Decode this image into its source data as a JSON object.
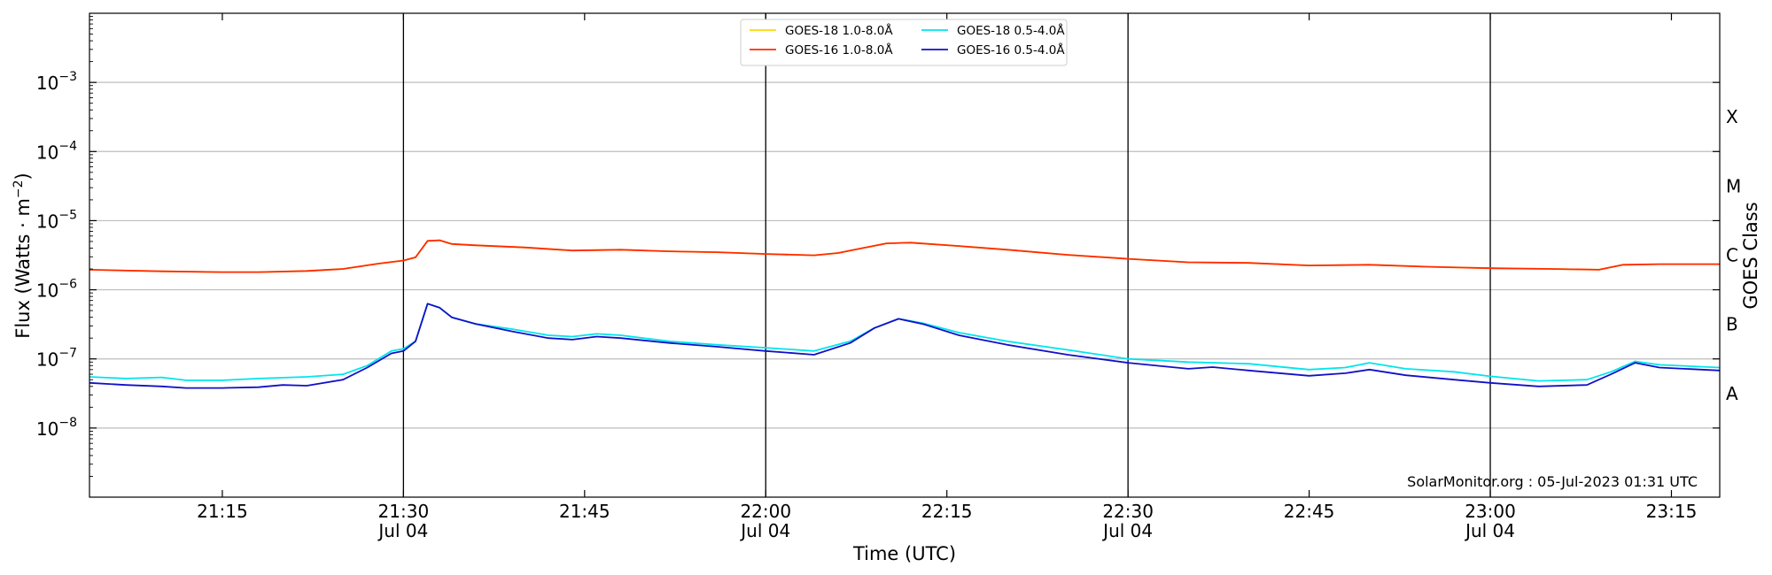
{
  "chart_data": {
    "type": "line",
    "xlabel": "Time (UTC)",
    "ylabel": "Flux (Watts · m",
    "ylabel_sup": "−2",
    "ylabel_close": ")",
    "right_label": "GOES Class",
    "annotation": "SolarMonitor.org : 05-Jul-2023 01:31 UTC",
    "y_scale": "log",
    "ylim": [
      1e-09,
      0.01
    ],
    "xlim": [
      "21:04",
      "23:19"
    ],
    "grid": "horizontal",
    "legend_position": "top-center",
    "x_ticks": [
      {
        "t": "21:15",
        "date": ""
      },
      {
        "t": "21:30",
        "date": "Jul 04"
      },
      {
        "t": "21:45",
        "date": ""
      },
      {
        "t": "22:00",
        "date": "Jul 04"
      },
      {
        "t": "22:15",
        "date": ""
      },
      {
        "t": "22:30",
        "date": "Jul 04"
      },
      {
        "t": "22:45",
        "date": ""
      },
      {
        "t": "23:00",
        "date": "Jul 04"
      },
      {
        "t": "23:15",
        "date": ""
      }
    ],
    "vertical_lines": [
      "21:30",
      "22:00",
      "22:30",
      "23:00"
    ],
    "y_ticks": [
      {
        "value": 1e-08,
        "mant": "10",
        "exp": "−8"
      },
      {
        "value": 1e-07,
        "mant": "10",
        "exp": "−7"
      },
      {
        "value": 1e-06,
        "mant": "10",
        "exp": "−6"
      },
      {
        "value": 1e-05,
        "mant": "10",
        "exp": "−5"
      },
      {
        "value": 0.0001,
        "mant": "10",
        "exp": "−4"
      },
      {
        "value": 0.001,
        "mant": "10",
        "exp": "−3"
      }
    ],
    "goes_classes": [
      {
        "label": "A",
        "value": 3.16e-08
      },
      {
        "label": "B",
        "value": 3.16e-07
      },
      {
        "label": "C",
        "value": 3.16e-06
      },
      {
        "label": "M",
        "value": 3.16e-05
      },
      {
        "label": "X",
        "value": 0.000316
      }
    ],
    "series": [
      {
        "name": "GOES-18 1.0-8.0Å",
        "color": "#ffd700",
        "points": [
          [
            "21:04",
            1.95e-06
          ],
          [
            "21:10",
            1.85e-06
          ],
          [
            "21:15",
            1.8e-06
          ],
          [
            "21:18",
            1.8e-06
          ],
          [
            "21:22",
            1.87e-06
          ],
          [
            "21:25",
            2e-06
          ],
          [
            "21:28",
            2.4e-06
          ],
          [
            "21:30",
            2.65e-06
          ],
          [
            "21:31",
            2.95e-06
          ],
          [
            "21:32",
            5.1e-06
          ],
          [
            "21:33",
            5.2e-06
          ],
          [
            "21:34",
            4.6e-06
          ],
          [
            "21:36",
            4.4e-06
          ],
          [
            "21:40",
            4.1e-06
          ],
          [
            "21:44",
            3.7e-06
          ],
          [
            "21:48",
            3.8e-06
          ],
          [
            "21:52",
            3.6e-06
          ],
          [
            "21:56",
            3.5e-06
          ],
          [
            "22:00",
            3.3e-06
          ],
          [
            "22:04",
            3.15e-06
          ],
          [
            "22:06",
            3.4e-06
          ],
          [
            "22:08",
            4e-06
          ],
          [
            "22:10",
            4.7e-06
          ],
          [
            "22:12",
            4.8e-06
          ],
          [
            "22:16",
            4.3e-06
          ],
          [
            "22:20",
            3.8e-06
          ],
          [
            "22:25",
            3.2e-06
          ],
          [
            "22:30",
            2.8e-06
          ],
          [
            "22:35",
            2.5e-06
          ],
          [
            "22:40",
            2.45e-06
          ],
          [
            "22:45",
            2.25e-06
          ],
          [
            "22:50",
            2.3e-06
          ],
          [
            "22:55",
            2.15e-06
          ],
          [
            "23:00",
            2.05e-06
          ],
          [
            "23:05",
            2e-06
          ],
          [
            "23:09",
            1.95e-06
          ],
          [
            "23:11",
            2.3e-06
          ],
          [
            "23:14",
            2.35e-06
          ],
          [
            "23:19",
            2.35e-06
          ]
        ]
      },
      {
        "name": "GOES-16 1.0-8.0Å",
        "color": "#ff2a00",
        "points": [
          [
            "21:04",
            1.95e-06
          ],
          [
            "21:10",
            1.85e-06
          ],
          [
            "21:15",
            1.8e-06
          ],
          [
            "21:18",
            1.8e-06
          ],
          [
            "21:22",
            1.87e-06
          ],
          [
            "21:25",
            2e-06
          ],
          [
            "21:28",
            2.4e-06
          ],
          [
            "21:30",
            2.65e-06
          ],
          [
            "21:31",
            2.95e-06
          ],
          [
            "21:32",
            5.1e-06
          ],
          [
            "21:33",
            5.2e-06
          ],
          [
            "21:34",
            4.6e-06
          ],
          [
            "21:36",
            4.4e-06
          ],
          [
            "21:40",
            4.1e-06
          ],
          [
            "21:44",
            3.7e-06
          ],
          [
            "21:48",
            3.8e-06
          ],
          [
            "21:52",
            3.6e-06
          ],
          [
            "21:56",
            3.5e-06
          ],
          [
            "22:00",
            3.3e-06
          ],
          [
            "22:04",
            3.15e-06
          ],
          [
            "22:06",
            3.4e-06
          ],
          [
            "22:08",
            4e-06
          ],
          [
            "22:10",
            4.7e-06
          ],
          [
            "22:12",
            4.8e-06
          ],
          [
            "22:16",
            4.3e-06
          ],
          [
            "22:20",
            3.8e-06
          ],
          [
            "22:25",
            3.2e-06
          ],
          [
            "22:30",
            2.8e-06
          ],
          [
            "22:35",
            2.5e-06
          ],
          [
            "22:40",
            2.45e-06
          ],
          [
            "22:45",
            2.25e-06
          ],
          [
            "22:50",
            2.3e-06
          ],
          [
            "22:55",
            2.15e-06
          ],
          [
            "23:00",
            2.05e-06
          ],
          [
            "23:05",
            2e-06
          ],
          [
            "23:09",
            1.95e-06
          ],
          [
            "23:11",
            2.3e-06
          ],
          [
            "23:14",
            2.35e-06
          ],
          [
            "23:19",
            2.35e-06
          ]
        ]
      },
      {
        "name": "GOES-18 0.5-4.0Å",
        "color": "#00e5ee",
        "points": [
          [
            "21:04",
            5.5e-08
          ],
          [
            "21:07",
            5.2e-08
          ],
          [
            "21:10",
            5.4e-08
          ],
          [
            "21:12",
            4.9e-08
          ],
          [
            "21:15",
            4.9e-08
          ],
          [
            "21:18",
            5.2e-08
          ],
          [
            "21:22",
            5.5e-08
          ],
          [
            "21:25",
            6e-08
          ],
          [
            "21:27",
            8e-08
          ],
          [
            "21:29",
            1.3e-07
          ],
          [
            "21:30",
            1.4e-07
          ],
          [
            "21:31",
            1.8e-07
          ],
          [
            "21:32",
            6.3e-07
          ],
          [
            "21:33",
            5.5e-07
          ],
          [
            "21:34",
            4e-07
          ],
          [
            "21:36",
            3.2e-07
          ],
          [
            "21:39",
            2.7e-07
          ],
          [
            "21:42",
            2.2e-07
          ],
          [
            "21:44",
            2.1e-07
          ],
          [
            "21:46",
            2.3e-07
          ],
          [
            "21:48",
            2.2e-07
          ],
          [
            "21:52",
            1.8e-07
          ],
          [
            "21:56",
            1.6e-07
          ],
          [
            "22:00",
            1.45e-07
          ],
          [
            "22:04",
            1.3e-07
          ],
          [
            "22:07",
            1.8e-07
          ],
          [
            "22:09",
            2.8e-07
          ],
          [
            "22:11",
            3.8e-07
          ],
          [
            "22:13",
            3.3e-07
          ],
          [
            "22:16",
            2.4e-07
          ],
          [
            "22:20",
            1.8e-07
          ],
          [
            "22:25",
            1.35e-07
          ],
          [
            "22:30",
            1e-07
          ],
          [
            "22:35",
            9e-08
          ],
          [
            "22:40",
            8.5e-08
          ],
          [
            "22:45",
            7e-08
          ],
          [
            "22:48",
            7.5e-08
          ],
          [
            "22:50",
            8.8e-08
          ],
          [
            "22:53",
            7.2e-08
          ],
          [
            "22:57",
            6.5e-08
          ],
          [
            "23:00",
            5.6e-08
          ],
          [
            "23:04",
            4.8e-08
          ],
          [
            "23:08",
            5e-08
          ],
          [
            "23:10",
            6.5e-08
          ],
          [
            "23:12",
            9.2e-08
          ],
          [
            "23:14",
            8.2e-08
          ],
          [
            "23:19",
            7.5e-08
          ]
        ]
      },
      {
        "name": "GOES-16 0.5-4.0Å",
        "color": "#1010c8",
        "points": [
          [
            "21:04",
            4.5e-08
          ],
          [
            "21:07",
            4.2e-08
          ],
          [
            "21:10",
            4e-08
          ],
          [
            "21:12",
            3.8e-08
          ],
          [
            "21:15",
            3.8e-08
          ],
          [
            "21:18",
            3.9e-08
          ],
          [
            "21:20",
            4.2e-08
          ],
          [
            "21:22",
            4.1e-08
          ],
          [
            "21:25",
            5e-08
          ],
          [
            "21:27",
            7.5e-08
          ],
          [
            "21:29",
            1.2e-07
          ],
          [
            "21:30",
            1.3e-07
          ],
          [
            "21:31",
            1.8e-07
          ],
          [
            "21:32",
            6.3e-07
          ],
          [
            "21:33",
            5.5e-07
          ],
          [
            "21:34",
            4e-07
          ],
          [
            "21:36",
            3.2e-07
          ],
          [
            "21:39",
            2.5e-07
          ],
          [
            "21:42",
            2e-07
          ],
          [
            "21:44",
            1.9e-07
          ],
          [
            "21:46",
            2.1e-07
          ],
          [
            "21:48",
            2e-07
          ],
          [
            "21:52",
            1.7e-07
          ],
          [
            "21:56",
            1.5e-07
          ],
          [
            "22:00",
            1.3e-07
          ],
          [
            "22:04",
            1.15e-07
          ],
          [
            "22:07",
            1.7e-07
          ],
          [
            "22:09",
            2.8e-07
          ],
          [
            "22:11",
            3.8e-07
          ],
          [
            "22:13",
            3.2e-07
          ],
          [
            "22:16",
            2.2e-07
          ],
          [
            "22:20",
            1.6e-07
          ],
          [
            "22:25",
            1.15e-07
          ],
          [
            "22:30",
            8.8e-08
          ],
          [
            "22:35",
            7.2e-08
          ],
          [
            "22:37",
            7.6e-08
          ],
          [
            "22:40",
            6.8e-08
          ],
          [
            "22:45",
            5.7e-08
          ],
          [
            "22:48",
            6.2e-08
          ],
          [
            "22:50",
            7e-08
          ],
          [
            "22:53",
            5.8e-08
          ],
          [
            "22:57",
            5e-08
          ],
          [
            "23:00",
            4.5e-08
          ],
          [
            "23:04",
            4e-08
          ],
          [
            "23:08",
            4.2e-08
          ],
          [
            "23:10",
            6e-08
          ],
          [
            "23:12",
            8.8e-08
          ],
          [
            "23:14",
            7.5e-08
          ],
          [
            "23:19",
            6.8e-08
          ]
        ]
      }
    ]
  }
}
